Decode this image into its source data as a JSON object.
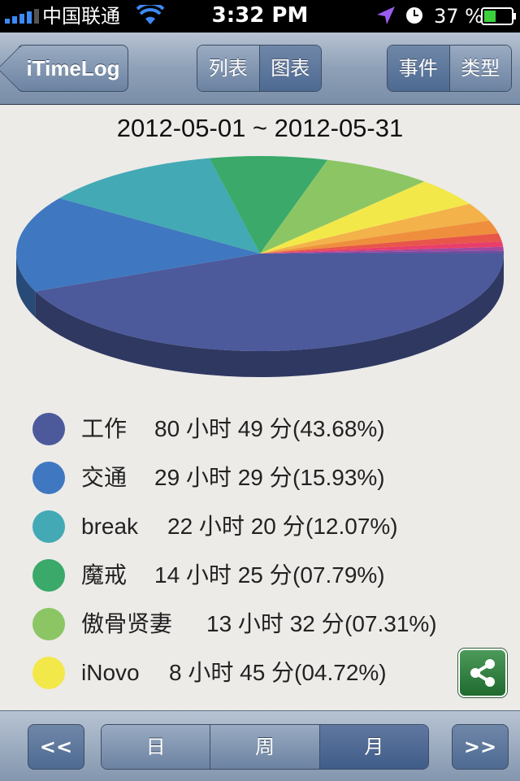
{
  "status_bar": {
    "carrier": "中国联通",
    "time": "3:32 PM",
    "battery": "37 %"
  },
  "nav": {
    "back_label": "iTimeLog",
    "view_tabs": [
      {
        "label": "列表",
        "selected": false
      },
      {
        "label": "图表",
        "selected": true
      }
    ],
    "group_tabs": [
      {
        "label": "事件",
        "selected": true
      },
      {
        "label": "类型",
        "selected": false
      }
    ]
  },
  "chart_data": {
    "type": "pie",
    "title": "2012-05-01 ~ 2012-05-31",
    "slices": [
      {
        "label": "工作",
        "duration": "80 小时 49 分",
        "percent_label": "(43.68%)",
        "value": 43.68,
        "color": "#4c5a9c"
      },
      {
        "label": "交通",
        "duration": "29 小时 29 分",
        "percent_label": "(15.93%)",
        "value": 15.93,
        "color": "#3f78c0"
      },
      {
        "label": "break",
        "duration": "22 小时 20 分",
        "percent_label": "(12.07%)",
        "value": 12.07,
        "color": "#43a9b5"
      },
      {
        "label": "魔戒",
        "duration": "14 小时 25 分",
        "percent_label": "(07.79%)",
        "value": 7.79,
        "color": "#3aa96a"
      },
      {
        "label": "傲骨贤妻",
        "duration": "13 小时 32 分",
        "percent_label": "(07.31%)",
        "value": 7.31,
        "color": "#8cc664"
      },
      {
        "label": "iNovo",
        "duration": "8 小时 45 分",
        "percent_label": "(04.72%)",
        "value": 4.72,
        "color": "#f3e84a"
      }
    ],
    "hidden_slices": [
      {
        "value": 3.0,
        "color": "#f3b24a"
      },
      {
        "value": 2.2,
        "color": "#ef8f3d"
      },
      {
        "value": 1.3,
        "color": "#e8554a"
      },
      {
        "value": 0.9,
        "color": "#e83f6a"
      },
      {
        "value": 0.6,
        "color": "#a4479e"
      },
      {
        "value": 0.5,
        "color": "#6e4fa0"
      }
    ]
  },
  "toolbar": {
    "prev_label": "<<",
    "next_label": ">>",
    "periods": [
      {
        "label": "日",
        "selected": false
      },
      {
        "label": "周",
        "selected": false
      },
      {
        "label": "月",
        "selected": true
      }
    ]
  }
}
